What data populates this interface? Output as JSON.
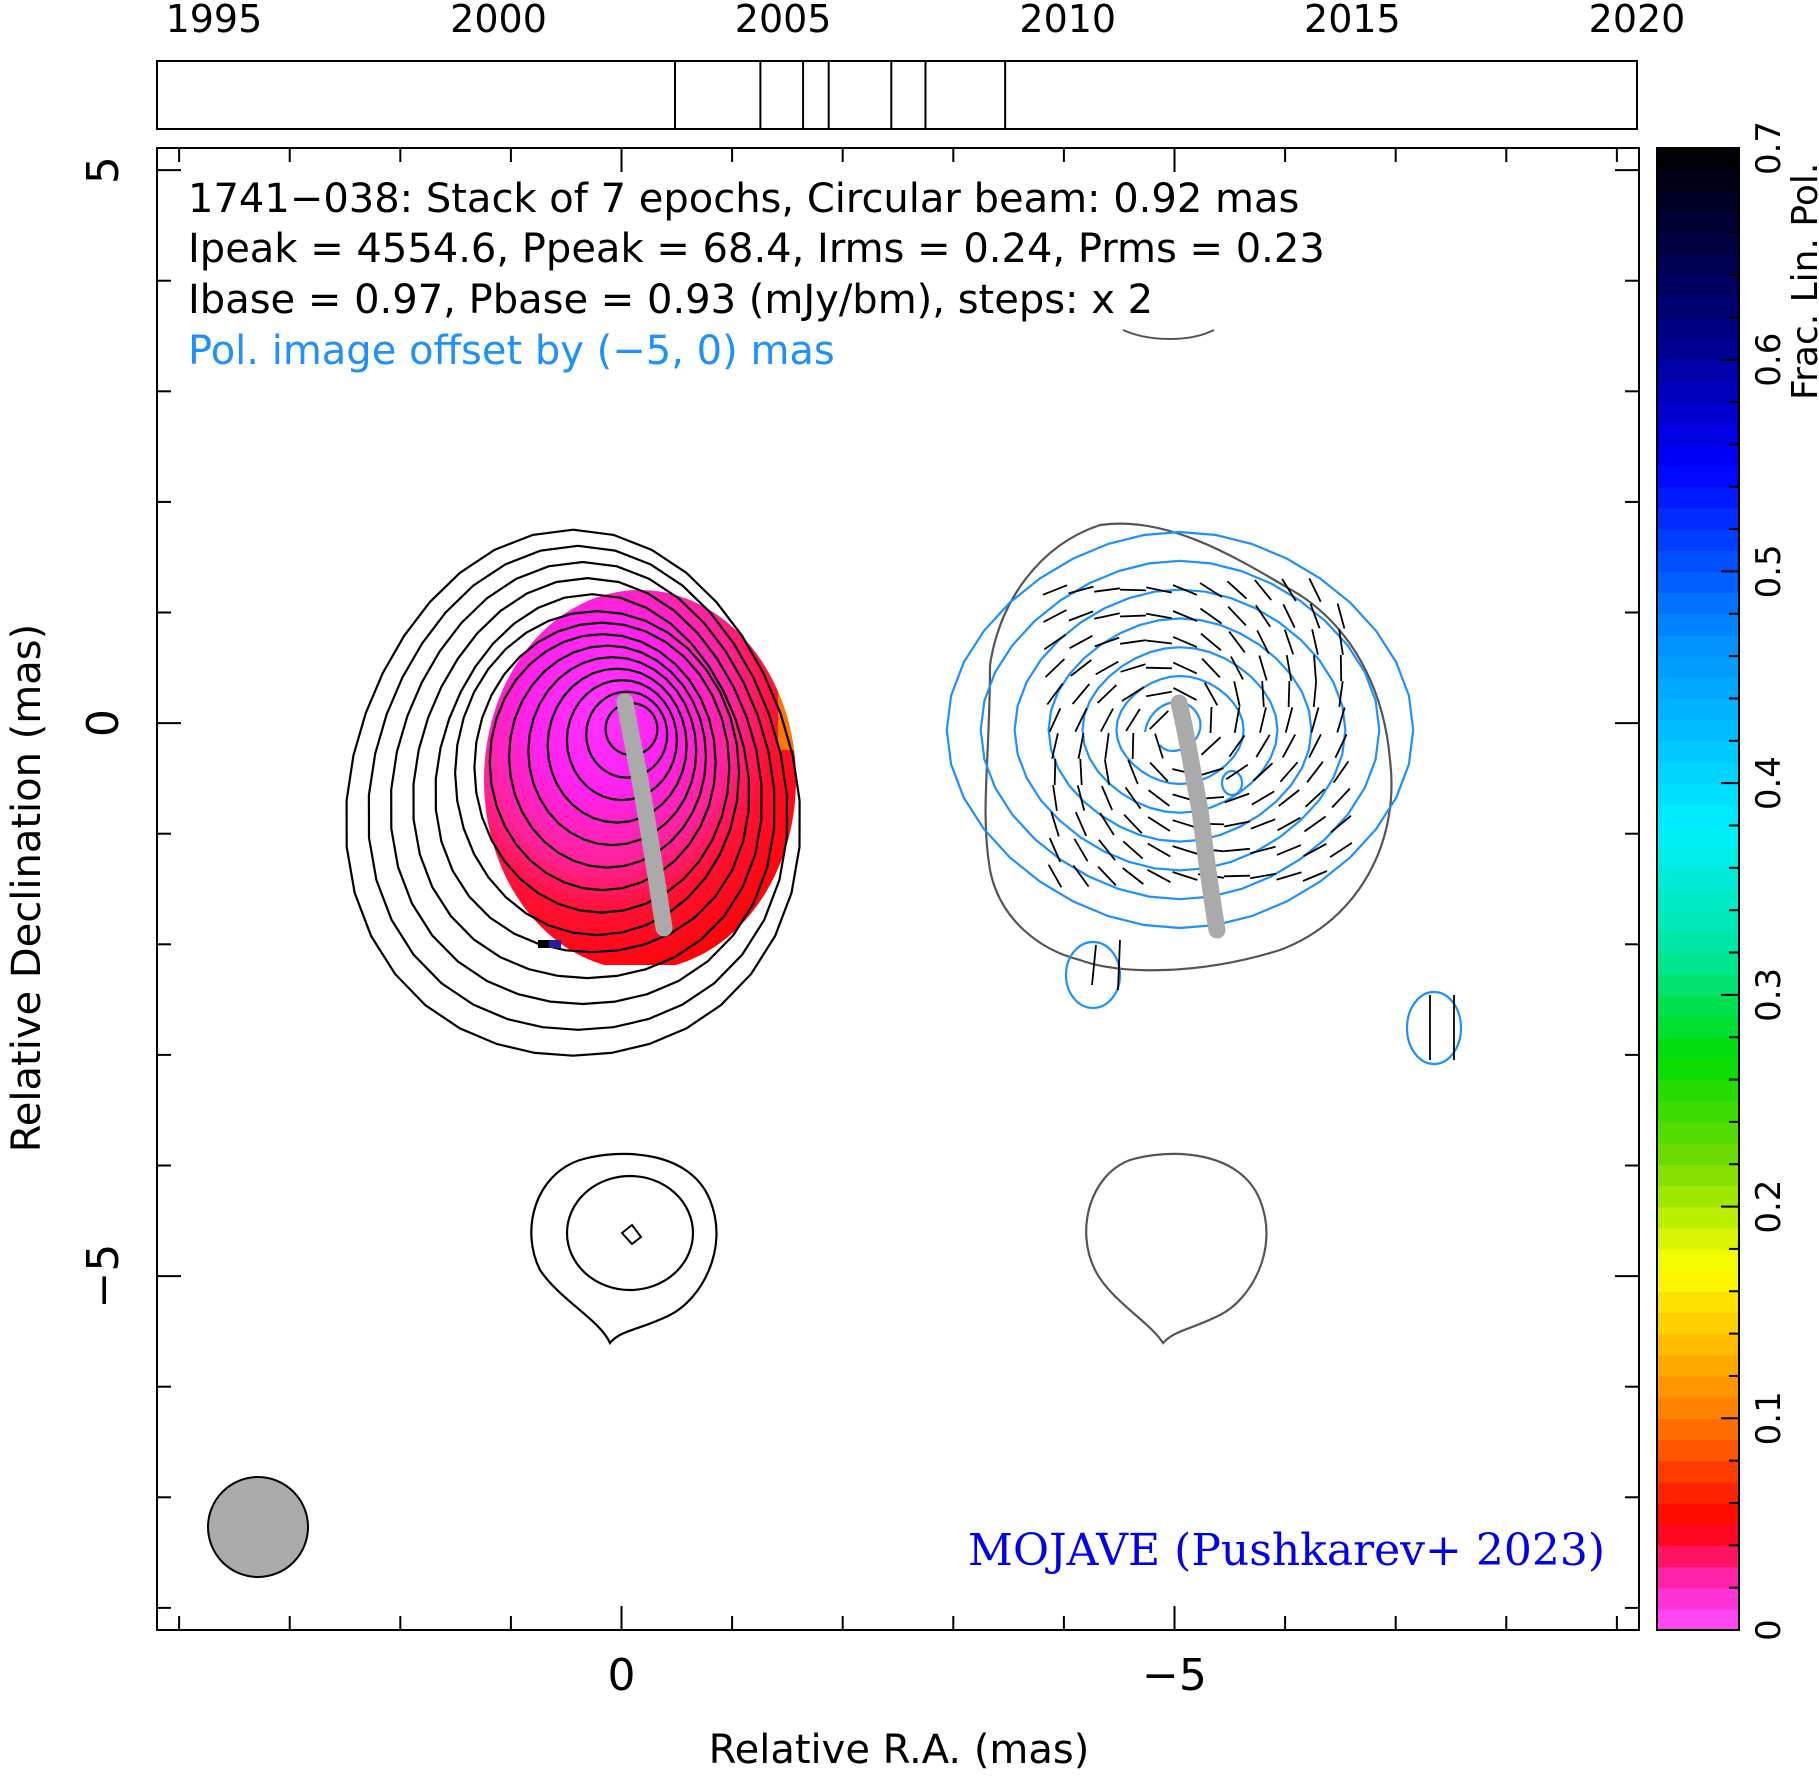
{
  "chart_data": {
    "type": "contour",
    "source": "1741−038",
    "header_lines": [
      "1741−038: Stack of 7 epochs, Circular beam: 0.92 mas",
      "Ipeak = 4554.6, Ppeak = 68.4, Irms = 0.24, Prms = 0.23",
      "Ibase = 0.97, Pbase = 0.93 (mJy/bm), steps: x 2"
    ],
    "offset_note": "Pol. image offset by (−5, 0) mas",
    "credit": "MOJAVE (Pushkarev+ 2023)",
    "xlabel": "Relative R.A. (mas)",
    "ylabel": "Relative Declination (mas)",
    "colorbar_label": "Frac. Lin. Pol.",
    "xlim": [
      4.2,
      -9.2
    ],
    "ylim": [
      -8.2,
      5.2
    ],
    "x_ticks": [
      {
        "value": 0,
        "label": "0"
      },
      {
        "value": -5,
        "label": "−5"
      }
    ],
    "y_ticks": [
      {
        "value": 5,
        "label": "5"
      },
      {
        "value": 0,
        "label": "0"
      },
      {
        "value": -5,
        "label": "−5"
      }
    ],
    "timeline": {
      "range": [
        1994.0,
        2020.0
      ],
      "tick_labels": [
        "1995",
        "2000",
        "2005",
        "2010",
        "2015",
        "2020"
      ],
      "epochs": [
        2003.1,
        2004.6,
        2005.35,
        2005.8,
        2006.9,
        2007.5,
        2008.9
      ]
    },
    "colorbar": {
      "range": [
        0,
        0.7
      ],
      "tick_labels": [
        "0",
        "0.1",
        "0.2",
        "0.3",
        "0.4",
        "0.5",
        "0.6",
        "0.7"
      ]
    },
    "beam": {
      "diameter_mas": 0.92
    },
    "frac_pol_range_in_core": [
      0.0,
      0.12
    ],
    "colors": {
      "stokes_i_contours": "#000000",
      "pol_contours": "#1e90ff",
      "offset_note": "#1e90ff",
      "credit": "#0000ee",
      "jet_ridge": "#aaaaaa",
      "beam_fill": "#aaaaaa",
      "outer_contour_pol_panel": "#555555"
    },
    "jet_ridge_mas": [
      [
        0,
        0
      ],
      [
        -0.15,
        -0.5
      ],
      [
        -0.25,
        -1.0
      ],
      [
        -0.3,
        -1.5
      ],
      [
        -0.35,
        -2.0
      ]
    ]
  }
}
